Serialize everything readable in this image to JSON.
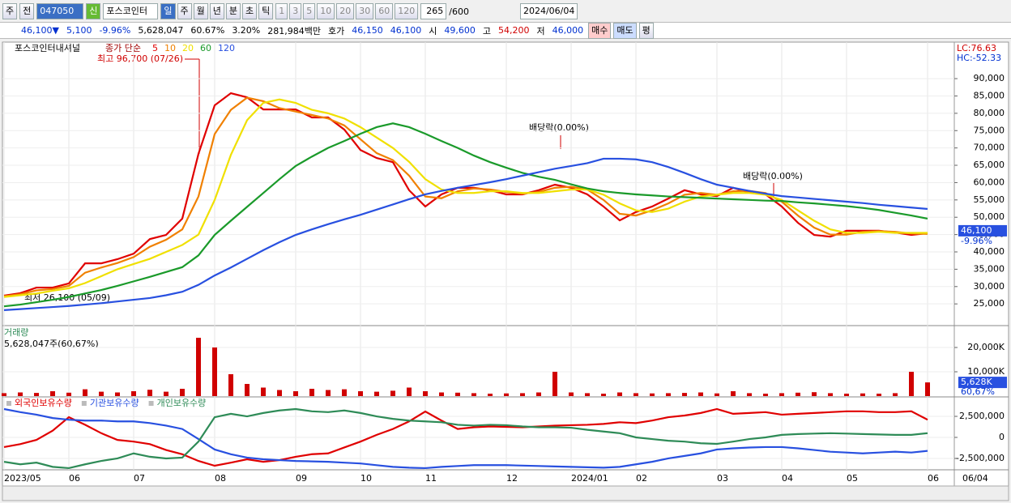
{
  "toolbar": {
    "period": "주",
    "prev": "전",
    "code": "047050",
    "badge": "신",
    "name": "포스코인터",
    "intervals": [
      "일",
      "주",
      "월",
      "년",
      "분",
      "초",
      "틱"
    ],
    "counts": [
      "1",
      "3",
      "5",
      "10",
      "20",
      "30",
      "60",
      "120"
    ],
    "view": "265",
    "view_total": "/600",
    "date": "2024/06/04"
  },
  "quote_bar": {
    "price": "46,100▼",
    "change": "5,100",
    "change_pct": "-9.96%",
    "volume": "5,628,047",
    "volume_pct": "60.67%",
    "turnover": "3.20%",
    "amount": "281,984백만",
    "quote_label": "호가",
    "ask": "46,150",
    "bid": "46,100",
    "open_label": "시",
    "open": "49,600",
    "high_label": "고",
    "high": "54,200",
    "low_label": "저",
    "low": "46,000",
    "buy": "매수",
    "sell": "매도",
    "avg": "평"
  },
  "x_axis": {
    "categories": [
      "2023/05",
      null,
      null,
      null,
      "06",
      null,
      null,
      null,
      "07",
      null,
      null,
      null,
      null,
      "08",
      null,
      null,
      null,
      null,
      "09",
      null,
      null,
      null,
      "10",
      null,
      null,
      null,
      "11",
      null,
      null,
      null,
      null,
      "12",
      null,
      null,
      null,
      "2024/01",
      null,
      null,
      null,
      "02",
      null,
      null,
      null,
      null,
      "03",
      null,
      null,
      null,
      "04",
      null,
      null,
      null,
      "05",
      null,
      null,
      null,
      null,
      "06"
    ],
    "end_label": "06/04"
  },
  "chart_data": [
    {
      "type": "line",
      "title": "포스코인터내셔널",
      "legend_title": "종가 단순",
      "ylim": [
        19200,
        98200
      ],
      "yticks": [
        {
          "value": 90000,
          "label": "90,000"
        },
        {
          "value": 85000,
          "label": "85,000"
        },
        {
          "value": 80000,
          "label": "80,000"
        },
        {
          "value": 75000,
          "label": "75,000"
        },
        {
          "value": 70000,
          "label": "70,000"
        },
        {
          "value": 65000,
          "label": "65,000"
        },
        {
          "value": 60000,
          "label": "60,000"
        },
        {
          "value": 55000,
          "label": "55,000"
        },
        {
          "value": 50000,
          "label": "50,000"
        },
        {
          "value": 45000,
          "label": "45,000"
        },
        {
          "value": 40000,
          "label": "40,000"
        },
        {
          "value": 35000,
          "label": "35,000"
        },
        {
          "value": 30000,
          "label": "30,000"
        },
        {
          "value": 25000,
          "label": "25,000"
        }
      ],
      "current": {
        "value": 46100,
        "label": "46,100",
        "change": "-9.96%"
      },
      "lc": "LC:76.63",
      "hc": "HC:-52.33",
      "annotations": [
        "최고 96,700 (07/26)",
        "최저 26,100 (05/09)",
        "배당락(0.00%)",
        "배당락(0.00%)"
      ],
      "series": [
        {
          "name": "5",
          "color": "#e00000",
          "values": [
            27400,
            28100,
            29700,
            29700,
            30900,
            36700,
            36700,
            37900,
            39500,
            43700,
            44900,
            49600,
            68300,
            82300,
            85800,
            84600,
            81100,
            81100,
            81100,
            78800,
            78800,
            75300,
            69400,
            67100,
            65900,
            57800,
            53100,
            56600,
            58500,
            58500,
            57800,
            56600,
            56600,
            57800,
            59400,
            58500,
            56600,
            53100,
            49100,
            51500,
            53100,
            55400,
            57800,
            56600,
            56100,
            58500,
            57100,
            56600,
            53100,
            48400,
            44900,
            44400,
            46100,
            46100,
            46100,
            45600,
            44900,
            45400
          ]
        },
        {
          "name": "10",
          "color": "#f08000",
          "values": [
            27200,
            27800,
            28900,
            29300,
            30200,
            34000,
            35500,
            36800,
            38500,
            41500,
            43500,
            46500,
            56000,
            74000,
            81000,
            84500,
            83500,
            81500,
            80500,
            79500,
            78500,
            76500,
            72500,
            68500,
            66500,
            62000,
            56000,
            55500,
            57500,
            58300,
            58000,
            57300,
            56800,
            57300,
            58500,
            58800,
            58000,
            55000,
            51000,
            50500,
            52000,
            54000,
            56500,
            57000,
            56500,
            57500,
            57600,
            57000,
            54500,
            50500,
            47000,
            45000,
            45000,
            45800,
            46000,
            45800,
            45300,
            45200
          ]
        },
        {
          "name": "20",
          "color": "#f0e000",
          "values": [
            27000,
            27500,
            28000,
            28800,
            29500,
            31000,
            33000,
            35000,
            36500,
            38000,
            40000,
            42000,
            45000,
            55000,
            68000,
            78000,
            83000,
            84000,
            83000,
            81000,
            80000,
            78500,
            76000,
            73000,
            70000,
            66000,
            61000,
            58000,
            57000,
            57000,
            57500,
            57500,
            57000,
            57000,
            57500,
            58000,
            58000,
            56500,
            54000,
            52000,
            51500,
            52500,
            54500,
            56000,
            56500,
            57000,
            57000,
            56500,
            55000,
            52000,
            49000,
            46500,
            45500,
            45500,
            45800,
            45500,
            45500,
            45500
          ]
        },
        {
          "name": "60",
          "color": "#1a9a2a",
          "values": [
            24300,
            24800,
            25500,
            26200,
            27000,
            28000,
            29000,
            30200,
            31500,
            32800,
            34200,
            35600,
            39000,
            44900,
            49000,
            53000,
            57000,
            61000,
            64800,
            67500,
            70000,
            72000,
            74100,
            76000,
            77100,
            76000,
            74100,
            72000,
            70000,
            67800,
            65900,
            64300,
            62800,
            61700,
            60800,
            59500,
            58300,
            57500,
            57000,
            56600,
            56300,
            56000,
            55800,
            55600,
            55400,
            55200,
            55000,
            54800,
            54700,
            54300,
            54000,
            53600,
            53200,
            52700,
            52100,
            51300,
            50500,
            49600
          ]
        },
        {
          "name": "120",
          "color": "#2850e0",
          "values": [
            23200,
            23500,
            23800,
            24100,
            24400,
            24800,
            25200,
            25700,
            26200,
            26700,
            27500,
            28500,
            30500,
            33200,
            35500,
            38000,
            40500,
            42800,
            44900,
            46500,
            48000,
            49400,
            50700,
            52200,
            53700,
            55200,
            56600,
            57600,
            58500,
            59300,
            60100,
            61000,
            62000,
            63000,
            64000,
            64800,
            65600,
            66900,
            66900,
            66700,
            65900,
            64500,
            62800,
            61000,
            59400,
            58500,
            57600,
            56800,
            56100,
            55700,
            55300,
            54900,
            54500,
            54100,
            53600,
            53200,
            52800,
            52400
          ]
        }
      ]
    },
    {
      "type": "bar",
      "title": "거래량",
      "subtitle": "5,628,047주(60,67%)",
      "color": "#d00000",
      "ylim": [
        0,
        28000
      ],
      "yticks": [
        {
          "value": 20000,
          "label": "20,000K"
        },
        {
          "value": 10000,
          "label": "10,000K"
        }
      ],
      "current": {
        "value": 5628,
        "label": "5,628K",
        "pct": "60,67%"
      },
      "values": [
        1200,
        1500,
        1300,
        2000,
        1400,
        2800,
        1800,
        1500,
        2000,
        2600,
        1800,
        3000,
        24000,
        20000,
        9000,
        5000,
        3500,
        2500,
        2000,
        3000,
        2500,
        2800,
        2000,
        1800,
        2200,
        3500,
        2000,
        1500,
        1400,
        1200,
        1000,
        1100,
        1200,
        1500,
        10000,
        1500,
        1200,
        1000,
        1500,
        1200,
        1100,
        1200,
        1300,
        1500,
        1100,
        2000,
        1200,
        1000,
        1200,
        1400,
        1600,
        1200,
        1000,
        1100,
        1000,
        1200,
        10000,
        5628
      ]
    },
    {
      "type": "line",
      "ylim": [
        -3850000,
        4620000
      ],
      "yticks": [
        {
          "value": 2500000,
          "label": "2,500,000"
        },
        0,
        {
          "value": -2500000,
          "label": "-2,500,000"
        }
      ],
      "series": [
        {
          "name": "외국인보유수량",
          "color": "#e00000",
          "values": [
            -1150000,
            -800000,
            -300000,
            800000,
            2400000,
            1500000,
            500000,
            -300000,
            -500000,
            -800000,
            -1500000,
            -2000000,
            -2800000,
            -3370000,
            -3000000,
            -2600000,
            -2900000,
            -2700000,
            -2300000,
            -2000000,
            -1900000,
            -1200000,
            -500000,
            300000,
            1000000,
            1900000,
            3080000,
            2000000,
            1000000,
            1200000,
            1300000,
            1250000,
            1200000,
            1300000,
            1400000,
            1450000,
            1500000,
            1600000,
            1800000,
            1700000,
            2000000,
            2400000,
            2600000,
            2900000,
            3370000,
            2800000,
            2900000,
            3000000,
            2700000,
            2800000,
            2900000,
            3000000,
            3100000,
            3100000,
            3000000,
            3000000,
            3100000,
            2100000
          ]
        },
        {
          "name": "기관보유수량",
          "color": "#2850e0",
          "values": [
            3370000,
            3000000,
            2700000,
            2300000,
            2100000,
            2000000,
            2000000,
            1900000,
            1900000,
            1700000,
            1400000,
            1000000,
            -200000,
            -1440000,
            -2000000,
            -2400000,
            -2600000,
            -2700000,
            -2800000,
            -2850000,
            -2900000,
            -3000000,
            -3100000,
            -3300000,
            -3500000,
            -3600000,
            -3650000,
            -3500000,
            -3400000,
            -3300000,
            -3300000,
            -3300000,
            -3350000,
            -3400000,
            -3450000,
            -3500000,
            -3550000,
            -3600000,
            -3500000,
            -3200000,
            -2900000,
            -2500000,
            -2200000,
            -1900000,
            -1440000,
            -1300000,
            -1200000,
            -1150000,
            -1150000,
            -1300000,
            -1500000,
            -1700000,
            -1800000,
            -1900000,
            -1800000,
            -1700000,
            -1800000,
            -1600000
          ]
        },
        {
          "name": "개인보유수량",
          "color": "#2e8b57",
          "values": [
            -2900000,
            -3200000,
            -3000000,
            -3500000,
            -3650000,
            -3200000,
            -2800000,
            -2500000,
            -1900000,
            -2300000,
            -2500000,
            -2400000,
            -500000,
            2400000,
            2800000,
            2500000,
            2900000,
            3200000,
            3370000,
            3100000,
            3000000,
            3200000,
            2900000,
            2500000,
            2200000,
            2000000,
            1900000,
            1800000,
            1500000,
            1400000,
            1500000,
            1450000,
            1300000,
            1200000,
            1200000,
            1150000,
            900000,
            700000,
            500000,
            0,
            -200000,
            -400000,
            -500000,
            -700000,
            -770000,
            -500000,
            -200000,
            0,
            300000,
            400000,
            450000,
            500000,
            450000,
            400000,
            350000,
            300000,
            300000,
            500000
          ]
        }
      ]
    }
  ]
}
